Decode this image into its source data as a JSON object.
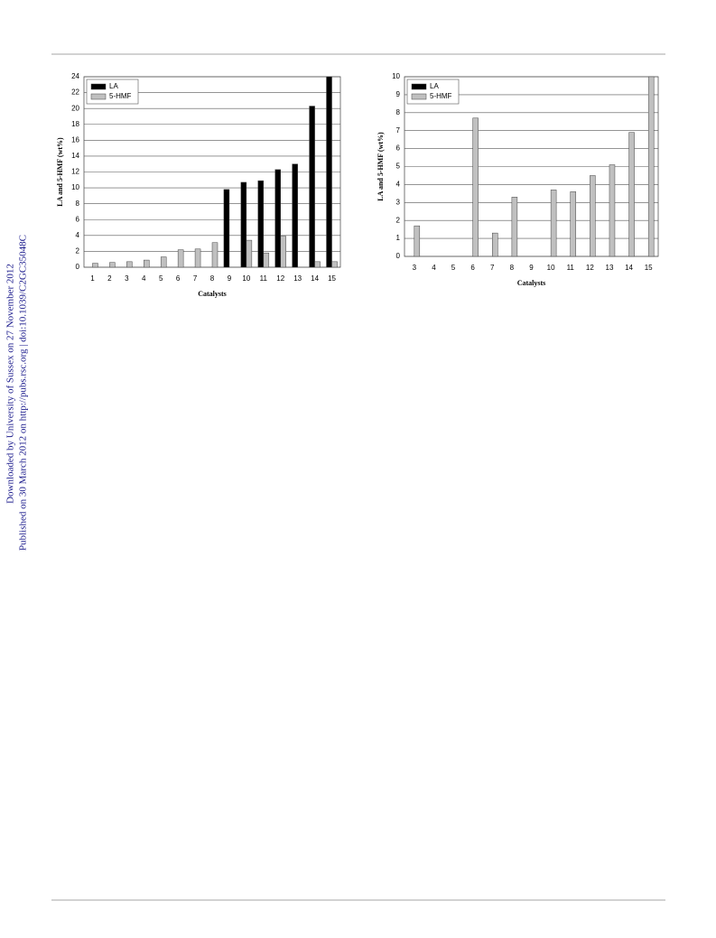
{
  "sidebar": [
    "Downloaded by University of Sussex on 27 November 2012",
    "Published on 30 March 2012 on http://pubs.rsc.org | doi:10.1039/C2GC35048C"
  ],
  "chart_data": [
    {
      "type": "bar",
      "xlabel": "Catalysts",
      "ylabel": "LA and 5-HMF (wt%)",
      "categories": [
        "1",
        "2",
        "3",
        "4",
        "5",
        "6",
        "7",
        "8",
        "9",
        "10",
        "11",
        "12",
        "13",
        "14",
        "15"
      ],
      "series": [
        {
          "name": "LA",
          "color": "#000000",
          "values": [
            0,
            0,
            0,
            0,
            0,
            0,
            0,
            0,
            9.8,
            10.7,
            10.9,
            12.3,
            13.0,
            20.3,
            24
          ]
        },
        {
          "name": "5-HMF",
          "color": "#c0c0c0",
          "values": [
            0.5,
            0.6,
            0.7,
            0.9,
            1.3,
            2.2,
            2.3,
            3.1,
            0,
            3.4,
            1.8,
            3.9,
            0,
            0.7,
            0.7
          ]
        }
      ],
      "ylim": [
        0,
        24
      ],
      "yticks": [
        0,
        2,
        4,
        6,
        8,
        10,
        12,
        14,
        16,
        18,
        20,
        22,
        24
      ],
      "grid": true,
      "legend": "upper left"
    },
    {
      "type": "bar",
      "xlabel": "Catalysts",
      "ylabel": "LA and 5-HMF (wt%)",
      "categories": [
        "3",
        "4",
        "5",
        "6",
        "7",
        "8",
        "9",
        "10",
        "11",
        "12",
        "13",
        "14",
        "15"
      ],
      "series": [
        {
          "name": "LA",
          "color": "#000000",
          "values": [
            0,
            0,
            0,
            0,
            0,
            0,
            0,
            0,
            0,
            0,
            0,
            0,
            0
          ]
        },
        {
          "name": "5-HMF",
          "color": "#c0c0c0",
          "values": [
            1.7,
            0,
            0,
            7.7,
            1.3,
            3.3,
            0,
            3.7,
            3.6,
            4.5,
            5.1,
            6.9,
            10
          ]
        }
      ],
      "ylim": [
        0,
        10
      ],
      "yticks": [
        0,
        1,
        2,
        3,
        4,
        5,
        6,
        7,
        8,
        9,
        10
      ],
      "grid": true,
      "legend": "upper left"
    }
  ]
}
